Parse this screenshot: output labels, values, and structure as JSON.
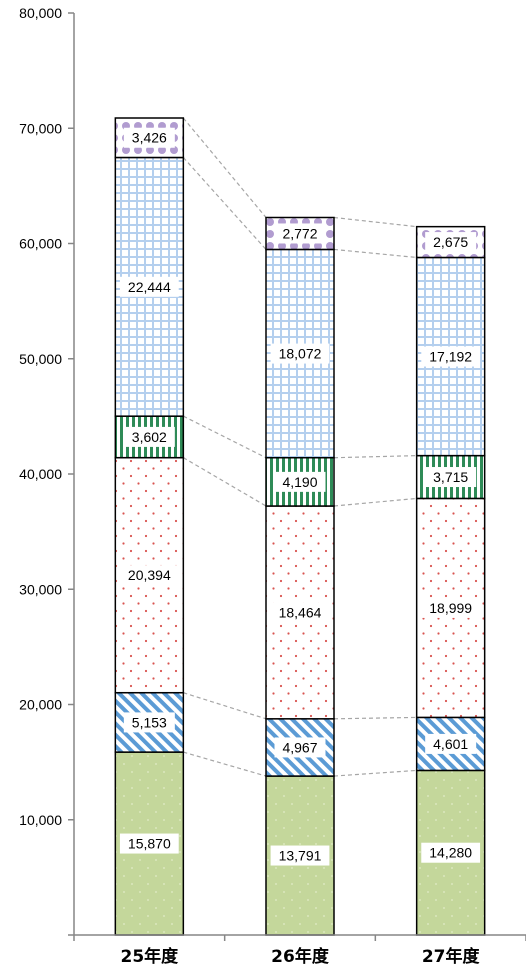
{
  "chart_data": {
    "type": "bar",
    "stacked": true,
    "title": "",
    "xlabel": "",
    "ylabel": "",
    "ylim": [
      0,
      80000
    ],
    "yticks": [
      0,
      10000,
      20000,
      30000,
      40000,
      50000,
      60000,
      70000,
      80000
    ],
    "ytick_labels": [
      "",
      "10,000",
      "20,000",
      "30,000",
      "40,000",
      "50,000",
      "60,000",
      "70,000",
      "80,000"
    ],
    "grid": false,
    "legend": "none",
    "categories": [
      "25年度",
      "26年度",
      "27年度"
    ],
    "series": [
      {
        "values": [
          15870,
          13791,
          14280
        ],
        "labels": [
          "15,870",
          "13,791",
          "14,280"
        ],
        "color": "#c4d79b",
        "pattern": "dots-light"
      },
      {
        "values": [
          5153,
          4967,
          4601
        ],
        "labels": [
          "5,153",
          "4,967",
          "4,601"
        ],
        "color": "#5b9bd5",
        "pattern": "diagonal-stripes"
      },
      {
        "values": [
          20394,
          18464,
          18999
        ],
        "labels": [
          "20,394",
          "18,464",
          "18,999"
        ],
        "color": "#d9534f",
        "pattern": "dots"
      },
      {
        "values": [
          3602,
          4190,
          3715
        ],
        "labels": [
          "3,602",
          "4,190",
          "3,715"
        ],
        "color": "#2e8b57",
        "pattern": "vertical-stripes"
      },
      {
        "values": [
          22444,
          18072,
          17192
        ],
        "labels": [
          "22,444",
          "18,072",
          "17,192"
        ],
        "color": "#9dc3e6",
        "pattern": "grid"
      },
      {
        "values": [
          3426,
          2772,
          2675
        ],
        "labels": [
          "3,426",
          "2,772",
          "2,675"
        ],
        "color": "#8064a2",
        "pattern": "large-dots"
      }
    ]
  }
}
